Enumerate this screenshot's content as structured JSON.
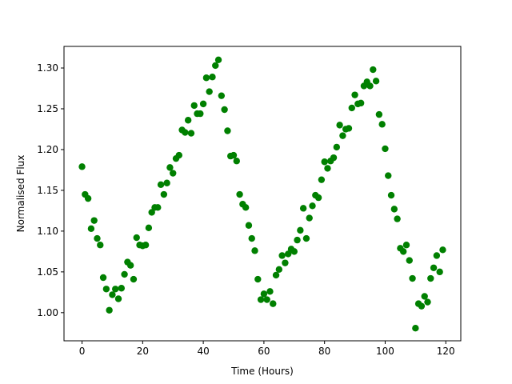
{
  "chart_data": {
    "type": "scatter",
    "xlabel": "Time (Hours)",
    "ylabel": "Normalised Flux",
    "color": "#008000",
    "x": [
      0,
      1,
      2,
      3,
      4,
      5,
      6,
      7,
      8,
      9,
      10,
      11,
      12,
      13,
      14,
      15,
      16,
      17,
      18,
      19,
      20,
      21,
      22,
      23,
      24,
      25,
      26,
      27,
      28,
      29,
      30,
      31,
      32,
      33,
      34,
      35,
      36,
      37,
      38,
      39,
      40,
      41,
      42,
      43,
      44,
      45,
      46,
      47,
      48,
      49,
      50,
      51,
      52,
      53,
      54,
      55,
      56,
      57,
      58,
      59,
      60,
      61,
      62,
      63,
      64,
      65,
      66,
      67,
      68,
      69,
      70,
      71,
      72,
      73,
      74,
      75,
      76,
      77,
      78,
      79,
      80,
      81,
      82,
      83,
      84,
      85,
      86,
      87,
      88,
      89,
      90,
      91,
      92,
      93,
      94,
      95,
      96,
      97,
      98,
      99,
      100,
      101,
      102,
      103,
      104,
      105,
      106,
      107,
      108,
      109,
      110,
      111,
      112,
      113,
      114,
      115,
      116,
      117,
      118,
      119
    ],
    "values": [
      1.179,
      1.145,
      1.14,
      1.103,
      1.113,
      1.091,
      1.083,
      1.043,
      1.029,
      1.003,
      1.022,
      1.029,
      1.017,
      1.03,
      1.047,
      1.062,
      1.058,
      1.041,
      1.092,
      1.083,
      1.082,
      1.083,
      1.104,
      1.123,
      1.129,
      1.129,
      1.157,
      1.145,
      1.159,
      1.178,
      1.171,
      1.189,
      1.193,
      1.224,
      1.221,
      1.236,
      1.22,
      1.254,
      1.244,
      1.244,
      1.256,
      1.288,
      1.271,
      1.289,
      1.303,
      1.31,
      1.266,
      1.249,
      1.223,
      1.192,
      1.193,
      1.186,
      1.145,
      1.133,
      1.129,
      1.107,
      1.091,
      1.076,
      1.041,
      1.016,
      1.023,
      1.016,
      1.026,
      1.011,
      1.046,
      1.053,
      1.07,
      1.061,
      1.072,
      1.078,
      1.075,
      1.089,
      1.101,
      1.128,
      1.091,
      1.116,
      1.131,
      1.144,
      1.141,
      1.163,
      1.185,
      1.177,
      1.186,
      1.19,
      1.203,
      1.23,
      1.217,
      1.225,
      1.226,
      1.251,
      1.267,
      1.256,
      1.257,
      1.278,
      1.283,
      1.278,
      1.298,
      1.284,
      1.243,
      1.231,
      1.201,
      1.168,
      1.144,
      1.127,
      1.115,
      1.079,
      1.075,
      1.083,
      1.064,
      1.042,
      0.981,
      1.011,
      1.008,
      1.02,
      1.013,
      1.042,
      1.055,
      1.07,
      1.05,
      1.077
    ],
    "xlim": [
      -5.95,
      124.95
    ],
    "ylim": [
      0.9655,
      1.3265
    ],
    "xticks": [
      0,
      20,
      40,
      60,
      80,
      100,
      120
    ],
    "yticks": [
      {
        "value": 1.0,
        "label": "1.00"
      },
      {
        "value": 1.05,
        "label": "1.05"
      },
      {
        "value": 1.1,
        "label": "1.10"
      },
      {
        "value": 1.15,
        "label": "1.15"
      },
      {
        "value": 1.2,
        "label": "1.20"
      },
      {
        "value": 1.25,
        "label": "1.25"
      },
      {
        "value": 1.3,
        "label": "1.30"
      }
    ]
  }
}
